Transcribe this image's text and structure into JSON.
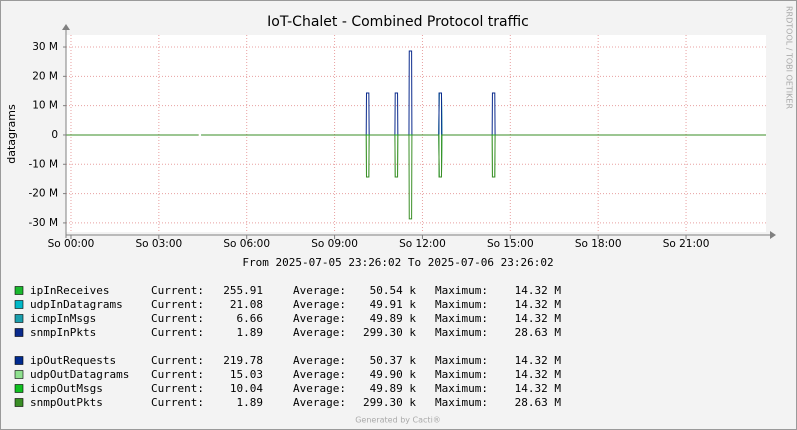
{
  "chart_data": {
    "type": "line",
    "title": "IoT-Chalet - Combined Protocol traffic",
    "y_label": "datagrams",
    "side_text": "RRDTOOL / TOBI OETIKER",
    "subtitle": "From 2025-07-05 23:26:02 To 2025-07-06 23:26:02",
    "footer": "Generated by Cacti®",
    "stat_labels": [
      "Current:",
      "Average:",
      "Maximum:"
    ],
    "grid": true,
    "xlim": [
      -0.17,
      23.73
    ],
    "xticks": [
      {
        "value": 0,
        "label": "So 00:00"
      },
      {
        "value": 3,
        "label": "So 03:00"
      },
      {
        "value": 6,
        "label": "So 06:00"
      },
      {
        "value": 9,
        "label": "So 09:00"
      },
      {
        "value": 12,
        "label": "So 12:00"
      },
      {
        "value": 15,
        "label": "So 15:00"
      },
      {
        "value": 18,
        "label": "So 18:00"
      },
      {
        "value": 21,
        "label": "So 21:00"
      }
    ],
    "ylim": [
      -33100000,
      34100000
    ],
    "yticks": [
      {
        "value": -30000000,
        "label": "-30 M"
      },
      {
        "value": -20000000,
        "label": "-20 M"
      },
      {
        "value": -10000000,
        "label": "-10 M"
      },
      0,
      {
        "value": 10000000,
        "label": "10 M"
      },
      {
        "value": 20000000,
        "label": "20 M"
      },
      {
        "value": 30000000,
        "label": "30 M"
      }
    ],
    "x": [
      -0.17,
      4.35,
      4.4,
      4.45,
      10.08,
      10.09,
      10.17,
      10.18,
      11.06,
      11.07,
      11.15,
      11.16,
      11.54,
      11.55,
      11.63,
      11.64,
      12.56,
      12.57,
      12.65,
      12.66,
      14.38,
      14.39,
      14.47,
      14.48,
      23.73
    ],
    "series": [
      {
        "name": "ipInReceives",
        "color": "#1ab82e",
        "current": "255.91",
        "average": "50.54 k",
        "maximum": "14.32 M",
        "values": [
          0,
          0,
          null,
          0,
          0,
          0,
          0,
          0,
          0,
          0,
          0,
          0,
          0,
          0,
          0,
          0,
          0,
          14320000,
          14320000,
          0,
          0,
          0,
          0,
          0,
          0
        ]
      },
      {
        "name": "udpInDatagrams",
        "color": "#00b8c8",
        "current": "21.08",
        "average": "49.91 k",
        "maximum": "14.32 M",
        "values": [
          0,
          0,
          null,
          0,
          0,
          0,
          0,
          0,
          0,
          0,
          0,
          0,
          0,
          0,
          0,
          0,
          0,
          14320000,
          14320000,
          0,
          0,
          0,
          0,
          0,
          0
        ]
      },
      {
        "name": "icmpInMsgs",
        "color": "#1a9fad",
        "current": "6.66",
        "average": "49.89 k",
        "maximum": "14.32 M",
        "values": [
          0,
          0,
          null,
          0,
          0,
          0,
          0,
          0,
          0,
          0,
          0,
          0,
          0,
          0,
          0,
          0,
          0,
          14320000,
          14320000,
          0,
          0,
          0,
          0,
          0,
          0
        ]
      },
      {
        "name": "snmpInPkts",
        "color": "#0a2a8c",
        "current": "1.89",
        "average": "299.30 k",
        "maximum": "28.63 M",
        "values": [
          0,
          0,
          null,
          0,
          0,
          14320000,
          14320000,
          0,
          0,
          14320000,
          14320000,
          0,
          0,
          28630000,
          28630000,
          0,
          0,
          14320000,
          14320000,
          0,
          0,
          14320000,
          14320000,
          0,
          0
        ]
      },
      {
        "name": "ipOutRequests",
        "color": "#002a8f",
        "current": "219.78",
        "average": "50.37 k",
        "maximum": "14.32 M",
        "values": [
          0,
          0,
          null,
          0,
          0,
          0,
          0,
          0,
          0,
          0,
          0,
          0,
          0,
          0,
          0,
          0,
          0,
          -14320000,
          -14320000,
          0,
          0,
          0,
          0,
          0,
          0
        ]
      },
      {
        "name": "udpOutDatagrams",
        "color": "#8fe08f",
        "current": "15.03",
        "average": "49.90 k",
        "maximum": "14.32 M",
        "values": [
          0,
          0,
          null,
          0,
          0,
          -14320000,
          -14320000,
          0,
          0,
          -14320000,
          -14320000,
          0,
          0,
          0,
          0,
          0,
          0,
          -14320000,
          -14320000,
          0,
          0,
          -14320000,
          -14320000,
          0,
          0
        ]
      },
      {
        "name": "icmpOutMsgs",
        "color": "#10c020",
        "current": "10.04",
        "average": "49.89 k",
        "maximum": "14.32 M",
        "values": [
          0,
          0,
          null,
          0,
          0,
          0,
          0,
          0,
          0,
          0,
          0,
          0,
          0,
          0,
          0,
          0,
          0,
          -14320000,
          -14320000,
          0,
          0,
          0,
          0,
          0,
          0
        ]
      },
      {
        "name": "snmpOutPkts",
        "color": "#3a8e26",
        "current": "1.89",
        "average": "299.30 k",
        "maximum": "28.63 M",
        "values": [
          0,
          0,
          null,
          0,
          0,
          -14320000,
          -14320000,
          0,
          0,
          -14320000,
          -14320000,
          0,
          0,
          -28630000,
          -28630000,
          0,
          0,
          -14320000,
          -14320000,
          0,
          0,
          -14320000,
          -14320000,
          0,
          0
        ]
      }
    ]
  }
}
